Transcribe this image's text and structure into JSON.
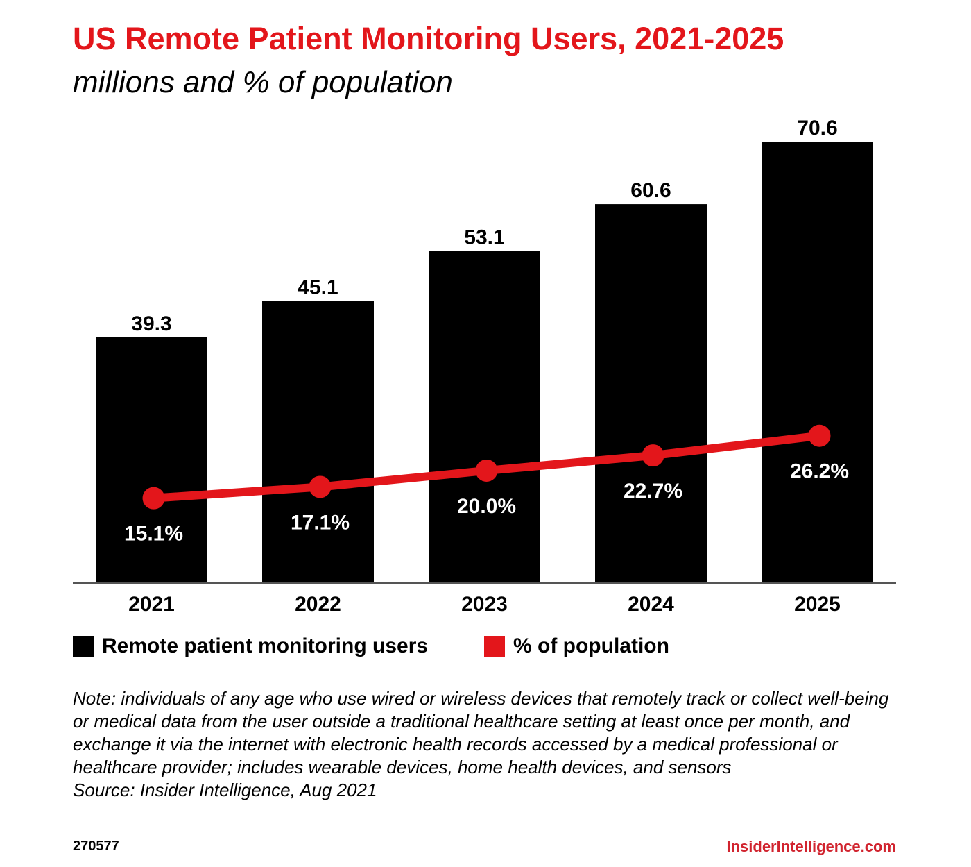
{
  "chart_data": {
    "type": "bar",
    "title": "US Remote Patient Monitoring Users, 2021-2025",
    "subtitle": "millions and % of population",
    "categories": [
      "2021",
      "2022",
      "2023",
      "2024",
      "2025"
    ],
    "series": [
      {
        "name": "Remote patient monitoring users",
        "type": "bar",
        "values": [
          39.3,
          45.1,
          53.1,
          60.6,
          70.6
        ],
        "labels": [
          "39.3",
          "45.1",
          "53.1",
          "60.6",
          "70.6"
        ],
        "color": "#000000"
      },
      {
        "name": "% of population",
        "type": "line",
        "values": [
          15.1,
          17.1,
          20.0,
          22.7,
          26.2
        ],
        "labels": [
          "15.1%",
          "17.1%",
          "20.0%",
          "22.7%",
          "26.2%"
        ],
        "color": "#e3161b"
      }
    ],
    "ylim": [
      0,
      70.6
    ],
    "y2lim": [
      0,
      78.5
    ],
    "grid": false,
    "legend_position": "bottom-left"
  },
  "note": "Note: individuals of any age who use wired or wireless devices that remotely track or collect well-being or medical data from the user outside a traditional healthcare setting at least once per month, and exchange it via the internet with electronic health records accessed by a medical professional or healthcare provider; includes wearable devices, home health devices, and sensors",
  "source": "Source: Insider Intelligence, Aug 2021",
  "chart_id": "270577",
  "brand": "InsiderIntelligence.com"
}
